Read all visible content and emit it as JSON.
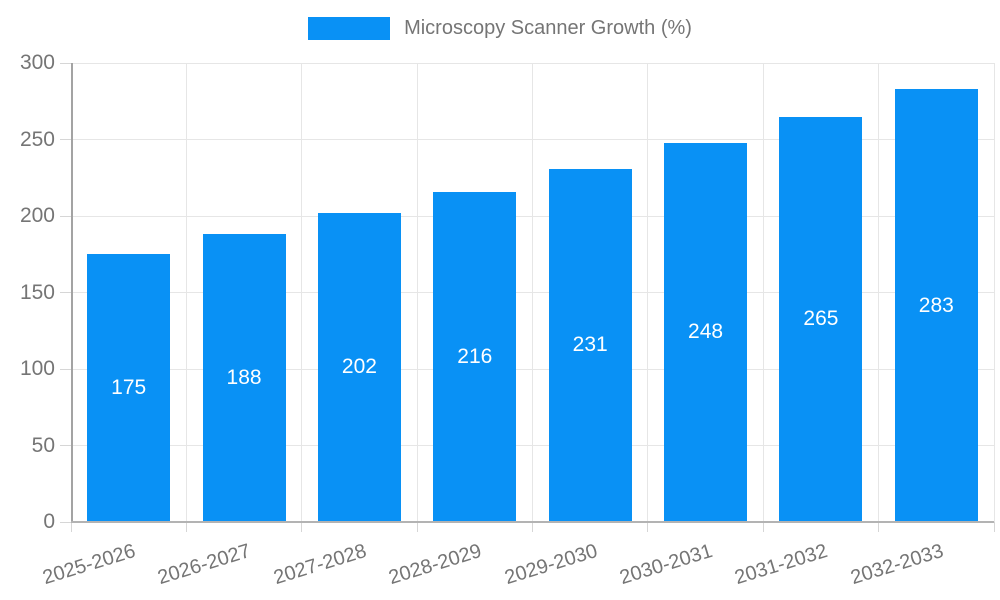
{
  "chart_data": {
    "type": "bar",
    "title": "Microscopy Scanner Growth (%)",
    "categories": [
      "2025-2026",
      "2026-2027",
      "2027-2028",
      "2028-2029",
      "2029-2030",
      "2030-2031",
      "2031-2032",
      "2032-2033"
    ],
    "values": [
      175,
      188,
      202,
      216,
      231,
      248,
      265,
      283
    ],
    "value_labels": [
      "175",
      "188",
      "202",
      "216",
      "231",
      "248",
      "265",
      "283"
    ],
    "xlabel": "",
    "ylabel": "",
    "ylim": [
      0,
      300
    ],
    "y_ticks": [
      0,
      50,
      100,
      150,
      200,
      250,
      300
    ],
    "grid": true,
    "legend_position": "top",
    "colors": {
      "bar": "#0991f5",
      "axis_text": "#757575",
      "grid_line": "#e6e6e6",
      "y_axis_line": "#a3a3a3",
      "x_axis_line": "#b3b3b3",
      "tick": "#d6d6d6",
      "value_label": "#ffffff"
    }
  }
}
